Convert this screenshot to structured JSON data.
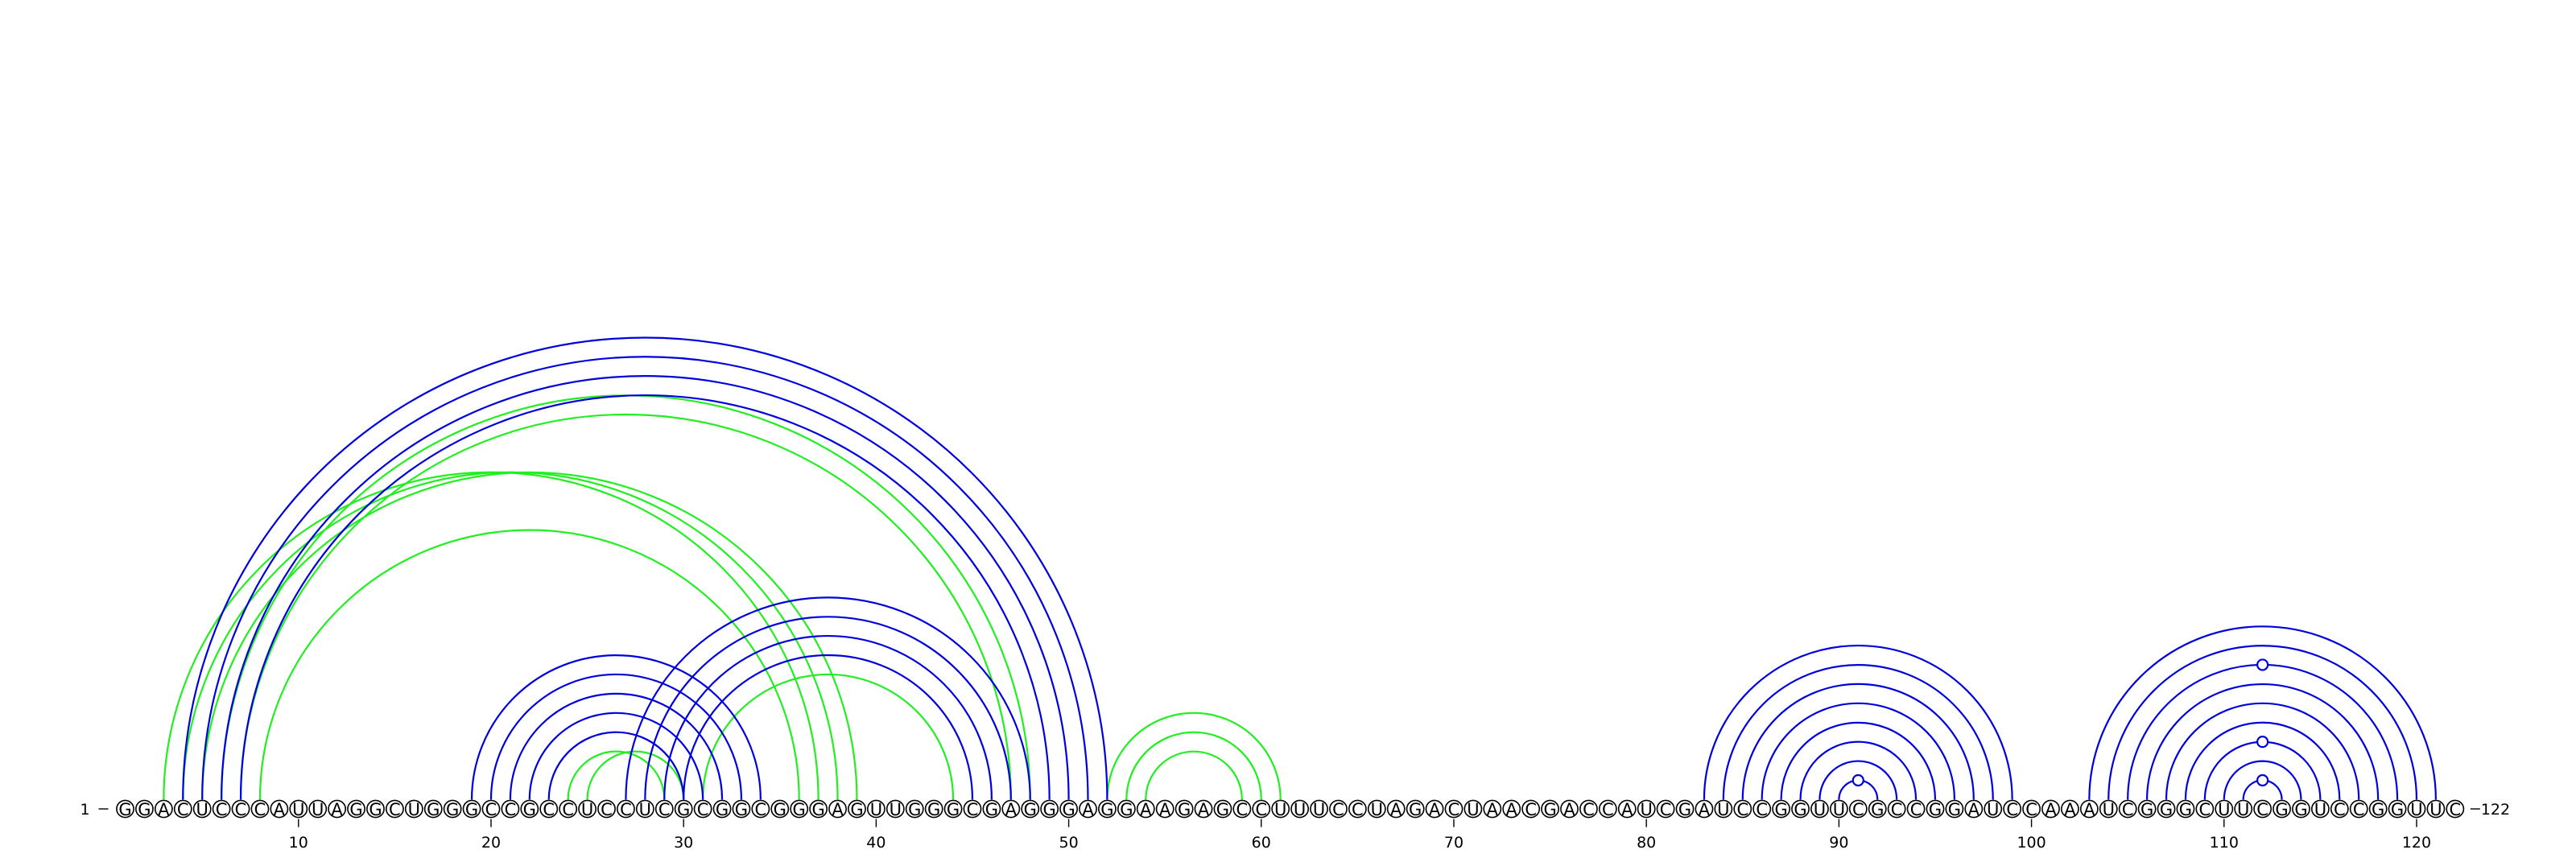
{
  "sequence": "GGACUCCCAUUAGGCUGGGCCGCCUCCUCGCGGCGGGAGUUGGGCGAGGGAGGAAGAGCCUUUCCUAGACUAACGACCAUCGAUCCGGUUCGCCGGAUCCAAAUCGGGCUUCGGUCCGGUUC",
  "start_label": "1",
  "end_label": "122",
  "ticks": [
    {
      "pos": 10,
      "label": "10"
    },
    {
      "pos": 20,
      "label": "20"
    },
    {
      "pos": 30,
      "label": "30"
    },
    {
      "pos": 40,
      "label": "40"
    },
    {
      "pos": 50,
      "label": "50"
    },
    {
      "pos": 60,
      "label": "60"
    },
    {
      "pos": 70,
      "label": "70"
    },
    {
      "pos": 80,
      "label": "80"
    },
    {
      "pos": 90,
      "label": "90"
    },
    {
      "pos": 100,
      "label": "100"
    },
    {
      "pos": 110,
      "label": "110"
    },
    {
      "pos": 120,
      "label": "120"
    }
  ],
  "colors": {
    "structure_a": "#0000dd",
    "structure_b": "#22ee22",
    "nucleotide_stroke": "#000000"
  },
  "structure_a_pairs": [
    [
      4,
      52
    ],
    [
      5,
      51
    ],
    [
      6,
      50
    ],
    [
      7,
      49
    ],
    [
      19,
      34
    ],
    [
      20,
      33
    ],
    [
      21,
      32
    ],
    [
      22,
      31
    ],
    [
      23,
      30
    ],
    [
      27,
      48
    ],
    [
      28,
      47
    ],
    [
      29,
      46
    ],
    [
      30,
      45
    ],
    [
      83,
      99
    ],
    [
      84,
      98
    ],
    [
      85,
      97
    ],
    [
      86,
      96
    ],
    [
      87,
      95
    ],
    [
      88,
      94
    ],
    [
      89,
      93
    ],
    [
      90,
      92
    ],
    [
      103,
      121
    ],
    [
      104,
      120
    ],
    [
      105,
      119
    ],
    [
      106,
      118
    ],
    [
      107,
      117
    ],
    [
      108,
      116
    ],
    [
      109,
      115
    ],
    [
      110,
      114
    ],
    [
      111,
      113
    ]
  ],
  "structure_b_pairs": [
    [
      3,
      37
    ],
    [
      4,
      38
    ],
    [
      5,
      39
    ],
    [
      6,
      48
    ],
    [
      7,
      47
    ],
    [
      8,
      36
    ],
    [
      24,
      29
    ],
    [
      25,
      30
    ],
    [
      31,
      44
    ],
    [
      52,
      61
    ],
    [
      53,
      60
    ],
    [
      54,
      59
    ]
  ],
  "unpaired_markers": [
    {
      "pos": 91,
      "level": 1,
      "structure": "structure_a"
    },
    {
      "pos": 112,
      "level": 1,
      "structure": "structure_a"
    },
    {
      "pos": 112,
      "level": 3,
      "structure": "structure_a"
    },
    {
      "pos": 112,
      "level": 7,
      "structure": "structure_a"
    }
  ]
}
